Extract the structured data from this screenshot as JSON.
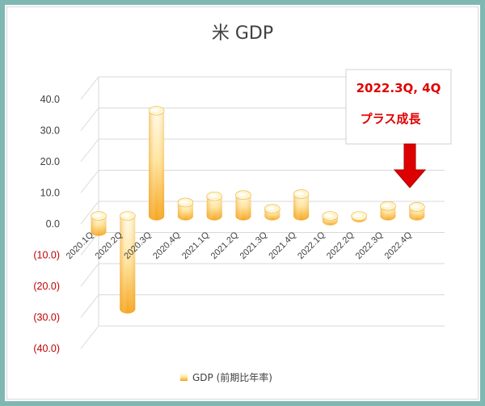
{
  "chart_data": {
    "type": "bar",
    "title": "米 GDP",
    "categories": [
      "2020.1Q",
      "2020.2Q",
      "2020.3Q",
      "2020.4Q",
      "2021.1Q",
      "2021.2Q",
      "2021.3Q",
      "2021.4Q",
      "2022.1Q",
      "2022.2Q",
      "2022.3Q",
      "2022.4Q"
    ],
    "series": [
      {
        "name": "GDP (前期比年率)",
        "values": [
          -5.0,
          -29.9,
          33.8,
          4.3,
          6.3,
          6.7,
          2.3,
          7.0,
          -1.6,
          -0.6,
          3.2,
          2.9
        ]
      }
    ],
    "yticks": [
      "40.0",
      "30.0",
      "20.0",
      "10.0",
      "0.0",
      "(10.0)",
      "(20.0)",
      "(30.0)",
      "(40.0)"
    ],
    "ylim": [
      -40,
      40
    ],
    "grid": true,
    "legend_position": "bottom",
    "annotation_lines": [
      "2022.3Q, 4Q",
      "プラス成長"
    ],
    "colors": {
      "bar_light": "#fff8dc",
      "bar_dark": "#f5a31a",
      "negative_tick": "#c00000",
      "annotation": "#e00000",
      "frame": "#7fb7b2"
    }
  }
}
